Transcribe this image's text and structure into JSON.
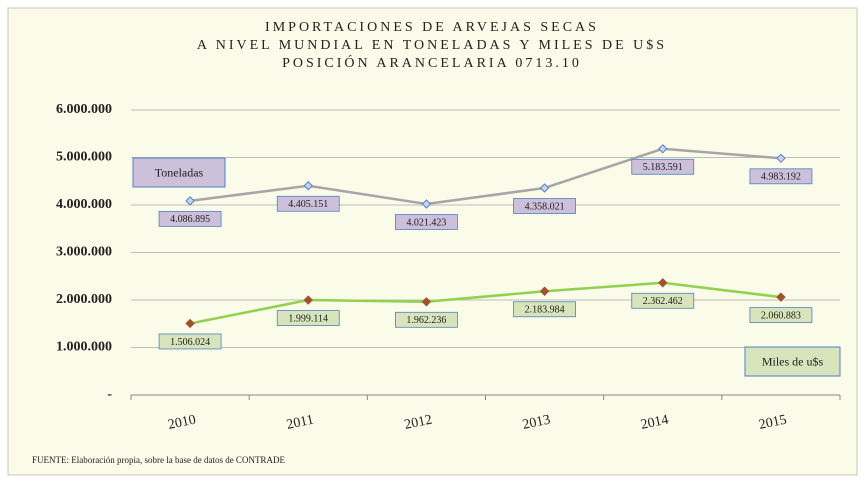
{
  "chart_data": {
    "type": "line",
    "title": [
      "IMPORTACIONES DE ARVEJAS SECAS",
      "A NIVEL MUNDIAL  EN TONELADAS Y MILES DE U$S",
      "POSICIÓN ARANCELARIA 0713.10"
    ],
    "categories": [
      "2010",
      "2011",
      "2012",
      "2013",
      "2014",
      "2015"
    ],
    "series": [
      {
        "name": "Toneladas",
        "color": "#a6a6a6",
        "marker_color": "#c5d5ee",
        "label_color": "#ccc0da",
        "values": [
          4086895,
          4405151,
          4021423,
          4358021,
          5183591,
          4983192
        ],
        "value_labels": [
          "4.086.895",
          "4.405.151",
          "4.021.423",
          "4.358.021",
          "5.183.591",
          "4.983.192"
        ]
      },
      {
        "name": "Miles de u$s",
        "color": "#92d050",
        "marker_color": "#a0522d",
        "label_color": "#d7e4bc",
        "values": [
          1506024,
          1999114,
          1962236,
          2183984,
          2362462,
          2060883
        ],
        "value_labels": [
          "1.506.024",
          "1.999.114",
          "1.962.236",
          "2.183.984",
          "2.362.462",
          "2.060.883"
        ]
      }
    ],
    "ylim": [
      0,
      6000000
    ],
    "yticks": [
      {
        "value": 0,
        "label": "-"
      },
      {
        "value": 1000000,
        "label": "1.000.000"
      },
      {
        "value": 2000000,
        "label": "2.000.000"
      },
      {
        "value": 3000000,
        "label": "3.000.000"
      },
      {
        "value": 4000000,
        "label": "4.000.000"
      },
      {
        "value": 5000000,
        "label": "5.000.000"
      },
      {
        "value": 6000000,
        "label": "6.000.000"
      }
    ],
    "grid": true,
    "source": "FUENTE: Elaboración propia, sobre la base de datos de CONTRADE"
  }
}
